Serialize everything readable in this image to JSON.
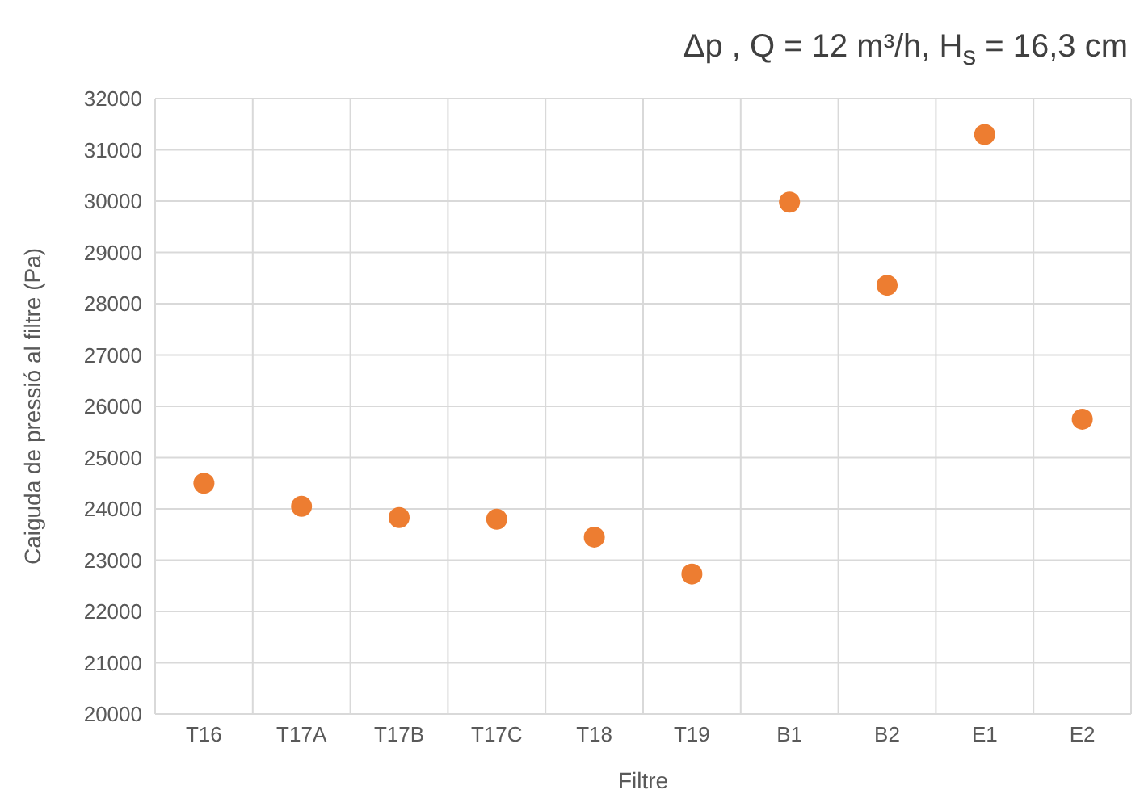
{
  "chart_data": {
    "type": "scatter",
    "title": "Δp , Q = 12 m³/h,  H$_{s}$ = 16,3 cm",
    "xlabel": "Filtre",
    "ylabel": "Caiguda de pressió al filtre (Pa)",
    "categories": [
      "T16",
      "T17A",
      "T17B",
      "T17C",
      "T18",
      "T19",
      "B1",
      "B2",
      "E1",
      "E2"
    ],
    "values": [
      24500,
      24050,
      23830,
      23800,
      23450,
      22730,
      29980,
      28360,
      31300,
      25750
    ],
    "color": "#ed7d31",
    "marker": "circle",
    "grid": true,
    "legend": false,
    "ylim": [
      20000,
      32000
    ],
    "yticks": [
      20000,
      21000,
      22000,
      23000,
      24000,
      25000,
      26000,
      27000,
      28000,
      29000,
      30000,
      31000,
      32000
    ]
  }
}
